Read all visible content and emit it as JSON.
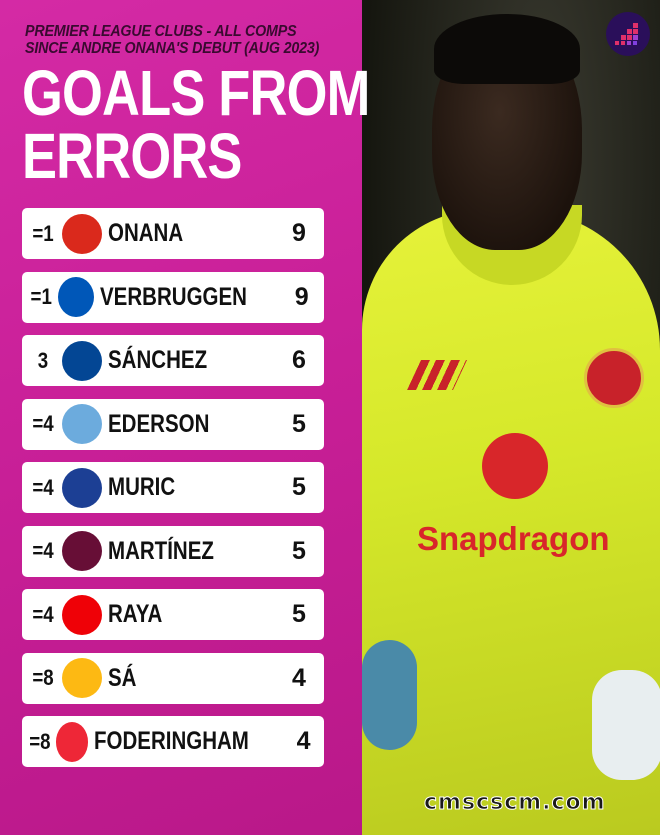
{
  "header": {
    "subtitle_line1": "PREMIER LEAGUE CLUBS - ALL COMPS",
    "subtitle_line2": "SINCE ANDRE ONANA'S DEBUT (AUG 2023)",
    "title_line1": "GOALS FROM",
    "title_line2": "ERRORS"
  },
  "rows": [
    {
      "rank": "=1",
      "player": "ONANA",
      "goals": "9",
      "club_logo": "manchester-united-crest",
      "color": "#da291c"
    },
    {
      "rank": "=1",
      "player": "VERBRUGGEN",
      "goals": "9",
      "club_logo": "brighton-crest",
      "color": "#0057b8"
    },
    {
      "rank": "3",
      "player": "SÁNCHEZ",
      "goals": "6",
      "club_logo": "chelsea-crest",
      "color": "#034694"
    },
    {
      "rank": "=4",
      "player": "EDERSON",
      "goals": "5",
      "club_logo": "manchester-city-crest",
      "color": "#6cabdd"
    },
    {
      "rank": "=4",
      "player": "MURIC",
      "goals": "5",
      "club_logo": "ipswich-town-crest",
      "color": "#1c3f94"
    },
    {
      "rank": "=4",
      "player": "MARTÍNEZ",
      "goals": "5",
      "club_logo": "aston-villa-crest",
      "color": "#670e36"
    },
    {
      "rank": "=4",
      "player": "RAYA",
      "goals": "5",
      "club_logo": "arsenal-crest",
      "color": "#ef0107"
    },
    {
      "rank": "=8",
      "player": "SÁ",
      "goals": "4",
      "club_logo": "wolves-crest",
      "color": "#fdb913"
    },
    {
      "rank": "=8",
      "player": "FODERINGHAM",
      "goals": "4",
      "club_logo": "sheffield-united-crest",
      "color": "#ee2737"
    }
  ],
  "photo": {
    "sponsor": "Snapdragon"
  },
  "watermark": "cmscscm.com",
  "colors": {
    "background": "#c81f97",
    "row": "#ffffff"
  }
}
